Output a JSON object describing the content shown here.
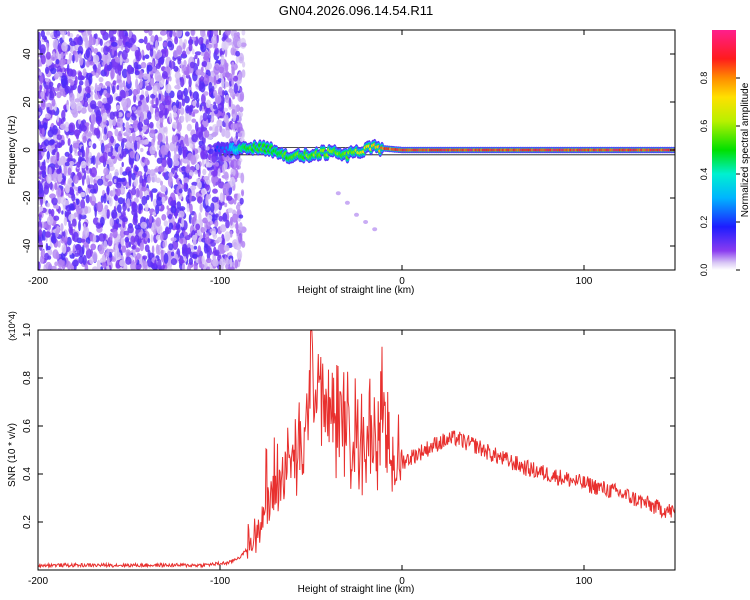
{
  "title": "GN04.2026.096.14.54.R11",
  "colorbar": {
    "label": "Normalized spectral amplitude",
    "ticks": [
      "0.0",
      "0.2",
      "0.4",
      "0.6",
      "0.8"
    ],
    "tick_values": [
      0.0,
      0.2,
      0.4,
      0.6,
      0.8
    ]
  },
  "chart_data": [
    {
      "type": "heatmap",
      "title": "GN04.2026.096.14.54.R11",
      "xlabel": "Height of straight line (km)",
      "ylabel": "Frequency (Hz)",
      "xlim": [
        -200,
        150
      ],
      "ylim": [
        -50,
        50
      ],
      "x_ticks": [
        -200,
        -100,
        0,
        100
      ],
      "x_tick_labels": [
        "-200",
        "-100",
        "0",
        "100"
      ],
      "y_ticks": [
        -40,
        -20,
        0,
        20,
        40
      ],
      "y_tick_labels": [
        "-40",
        "-20",
        "0",
        "20",
        "40"
      ],
      "zlim": [
        0,
        1
      ],
      "colormap": "rainbow (violet → blue → cyan → green → yellow → red → magenta)",
      "noise_region_x": [
        -200,
        -87
      ],
      "noise_amplitude": 0.05,
      "tone_frequency_hz": 0,
      "tone_x_range": [
        -102,
        150
      ],
      "tone_peak_amplitude": 0.95,
      "tone_points": [
        {
          "x": -102,
          "f": 0,
          "amp": 0.2
        },
        {
          "x": -95,
          "f": 0,
          "amp": 0.3
        },
        {
          "x": -88,
          "f": 1,
          "amp": 0.5
        },
        {
          "x": -80,
          "f": 1,
          "amp": 0.6
        },
        {
          "x": -70,
          "f": 0,
          "amp": 0.55
        },
        {
          "x": -60,
          "f": -3,
          "amp": 0.6
        },
        {
          "x": -50,
          "f": -2,
          "amp": 0.6
        },
        {
          "x": -40,
          "f": -1,
          "amp": 0.65
        },
        {
          "x": -30,
          "f": -2,
          "amp": 0.6
        },
        {
          "x": -20,
          "f": 0,
          "amp": 0.8
        },
        {
          "x": -15,
          "f": 1,
          "amp": 0.85
        },
        {
          "x": 0,
          "f": 0,
          "amp": 0.95
        },
        {
          "x": 50,
          "f": 0,
          "amp": 0.95
        },
        {
          "x": 100,
          "f": 0,
          "amp": 0.95
        },
        {
          "x": 150,
          "f": 0,
          "amp": 0.95
        }
      ],
      "faint_trace": [
        {
          "x": -35,
          "f": -18
        },
        {
          "x": -30,
          "f": -22
        },
        {
          "x": -25,
          "f": -27
        },
        {
          "x": -20,
          "f": -30
        },
        {
          "x": -15,
          "f": -33
        }
      ],
      "reference_line_f": [
        1,
        -2
      ]
    },
    {
      "type": "line",
      "xlabel": "Height of straight line (km)",
      "ylabel": "SNR (10 * v/v)",
      "y_multiplier": "(x10^4)",
      "xlim": [
        -200,
        150
      ],
      "ylim": [
        0,
        1.0
      ],
      "x_ticks": [
        -200,
        -100,
        0,
        100
      ],
      "x_tick_labels": [
        "-200",
        "-100",
        "0",
        "100"
      ],
      "y_ticks": [
        0.2,
        0.4,
        0.6,
        0.8,
        1.0
      ],
      "y_tick_labels": [
        "0.2",
        "0.4",
        "0.6",
        "0.8",
        "1.0"
      ],
      "series": [
        {
          "color": "#e8302e",
          "x": [
            -200,
            -150,
            -110,
            -95,
            -88,
            -82,
            -78,
            -74,
            -70,
            -65,
            -60,
            -55,
            -52,
            -50,
            -47,
            -45,
            -42,
            -40,
            -36,
            -30,
            -25,
            -20,
            -16,
            -12,
            -8,
            -5,
            0,
            5,
            10,
            15,
            20,
            25,
            30,
            35,
            40,
            45,
            50,
            60,
            70,
            80,
            90,
            100,
            110,
            120,
            130,
            140,
            150
          ],
          "y": [
            0.02,
            0.02,
            0.02,
            0.03,
            0.06,
            0.12,
            0.2,
            0.28,
            0.34,
            0.42,
            0.45,
            0.5,
            0.58,
            0.95,
            0.7,
            0.82,
            0.6,
            0.66,
            0.62,
            0.58,
            0.56,
            0.55,
            0.6,
            0.57,
            0.5,
            0.46,
            0.45,
            0.47,
            0.49,
            0.51,
            0.53,
            0.54,
            0.55,
            0.53,
            0.52,
            0.5,
            0.48,
            0.45,
            0.42,
            0.4,
            0.38,
            0.36,
            0.34,
            0.32,
            0.29,
            0.26,
            0.24
          ]
        }
      ],
      "peaks": [
        {
          "x": -50,
          "y": 1.0
        },
        {
          "x": -46,
          "y": 0.9
        },
        {
          "x": -11,
          "y": 0.93
        },
        {
          "x": -35,
          "y": 0.85
        }
      ]
    }
  ]
}
